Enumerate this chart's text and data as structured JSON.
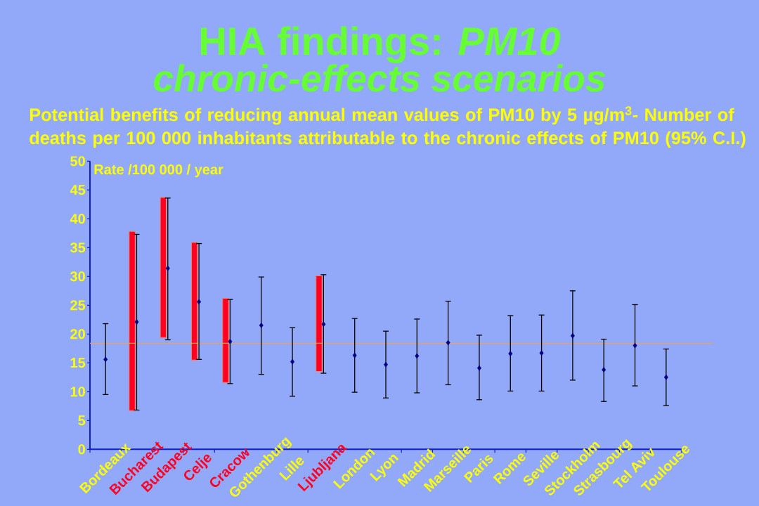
{
  "chart_data": {
    "type": "scatter",
    "title": "HIA findings: *PM10*",
    "subtitle": "chronic-effects scenarios",
    "ylabel": "Rate /100 000 / year",
    "annotations": [
      "Potential benefits of reducing annual mean values of PM10 by 5 µg/m$^{3}$- Number of deaths per 100 000 inhabitants attributable to the chronic effects of PM10 (95% C.I.)"
    ],
    "categories": [
      "Bordeaux",
      "Bucharest",
      "Budapest",
      "Celje",
      "Cracow",
      "Gothenburg",
      "Lille",
      "Ljubljana",
      "London",
      "Lyon",
      "Madrid",
      "Marseille",
      "Paris",
      "Rome",
      "Seville",
      "Stockholm",
      "Strasbourg",
      "Tel Aviv",
      "Toulouse"
    ],
    "ylim": [
      0,
      50
    ],
    "yticks": [
      0,
      5,
      10,
      15,
      20,
      25,
      30,
      35,
      40,
      45,
      50
    ],
    "marker": "diamond",
    "series": [
      {
        "type": "bar",
        "color": "#ff0022",
        "base": [
          null,
          6.7,
          19.4,
          15.5,
          11.6,
          null,
          null,
          13.5,
          null,
          null,
          null,
          null,
          null,
          null,
          null,
          null,
          null,
          null,
          null
        ],
        "values": [
          null,
          31.1,
          24.3,
          20.4,
          14.6,
          null,
          null,
          16.6,
          null,
          null,
          null,
          null,
          null,
          null,
          null,
          null,
          null,
          null,
          null
        ]
      },
      {
        "color": "#000080",
        "values": [
          15.6,
          22.1,
          31.4,
          25.6,
          18.7,
          21.5,
          15.2,
          21.7,
          16.3,
          14.7,
          16.2,
          18.5,
          14.1,
          16.6,
          16.7,
          19.7,
          13.8,
          18.0,
          12.5
        ],
        "errors": [
          [
            9.5,
            21.8
          ],
          [
            6.8,
            37.3
          ],
          [
            19.0,
            43.6
          ],
          [
            15.6,
            35.7
          ],
          [
            11.4,
            26.0
          ],
          [
            13.0,
            29.9
          ],
          [
            9.2,
            21.1
          ],
          [
            13.2,
            30.3
          ],
          [
            9.9,
            22.7
          ],
          [
            8.9,
            20.5
          ],
          [
            9.8,
            22.6
          ],
          [
            11.2,
            25.7
          ],
          [
            8.6,
            19.8
          ],
          [
            10.1,
            23.2
          ],
          [
            10.1,
            23.3
          ],
          [
            12.0,
            27.5
          ],
          [
            8.3,
            19.1
          ],
          [
            11.0,
            25.1
          ],
          [
            7.6,
            17.4
          ]
        ]
      }
    ],
    "ref_lines": [
      {
        "axis": "y",
        "value": 18.4,
        "color": "#f0a050"
      }
    ]
  }
}
